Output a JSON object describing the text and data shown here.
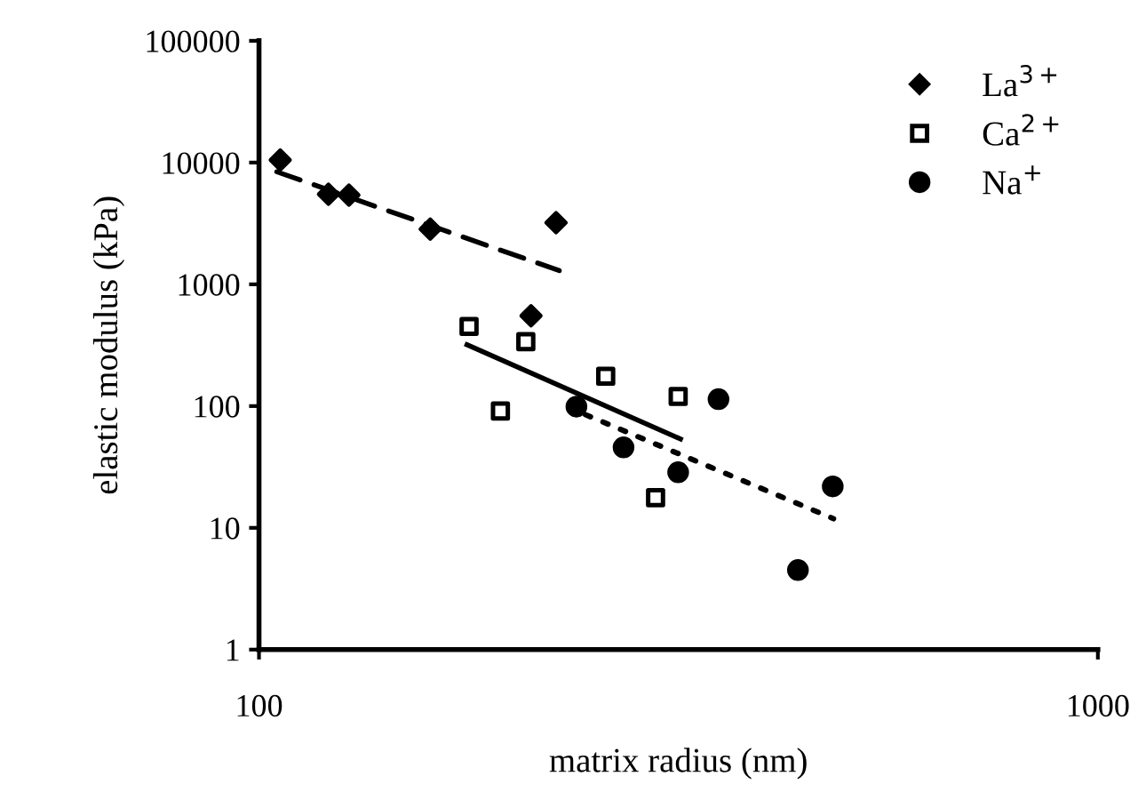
{
  "chart_data": {
    "type": "scatter",
    "xlabel": "matrix radius (nm)",
    "ylabel": "elastic modulus (kPa)",
    "log": "xy",
    "xlim": [
      100,
      1000
    ],
    "xticks": [
      100,
      1000
    ],
    "ylim": [
      1,
      100000
    ],
    "yticks": [
      1,
      10,
      100,
      1000,
      10000,
      100000
    ],
    "grid": false,
    "legend": "top right",
    "series": [
      {
        "name": "La$^{3+}$",
        "color": "#000000",
        "marker": "diamond",
        "x": [
          106,
          121,
          128,
          160,
          226,
          211
        ],
        "values": [
          10500,
          5500,
          5400,
          2840,
          3210,
          552
        ]
      },
      {
        "name": "Ca$^{2+}$",
        "color": "#000000",
        "marker": "square",
        "x": [
          178,
          208,
          194,
          259,
          316,
          297
        ],
        "values": [
          451,
          338,
          91,
          176,
          120,
          17.7
        ]
      },
      {
        "name": "Na$^{+}$",
        "color": "#000000",
        "marker": "circle",
        "x": [
          239,
          272,
          316,
          353,
          483,
          439
        ],
        "values": [
          99,
          45.8,
          28.6,
          114,
          21.9,
          4.5
        ]
      },
      {
        "type": "line",
        "color": "#000000",
        "line_style": "dashed",
        "marker": "none",
        "x": [
          105,
          228
        ],
        "values": [
          8400,
          1295
        ]
      },
      {
        "type": "line",
        "color": "#000000",
        "line_style": "solid",
        "marker": "none",
        "x": [
          177,
          318
        ],
        "values": [
          319,
          53.7
        ]
      },
      {
        "type": "line",
        "color": "#000000",
        "line_style": "dotted",
        "marker": "none",
        "x": [
          245,
          484
        ],
        "values": [
          85,
          11.9
        ]
      }
    ]
  }
}
